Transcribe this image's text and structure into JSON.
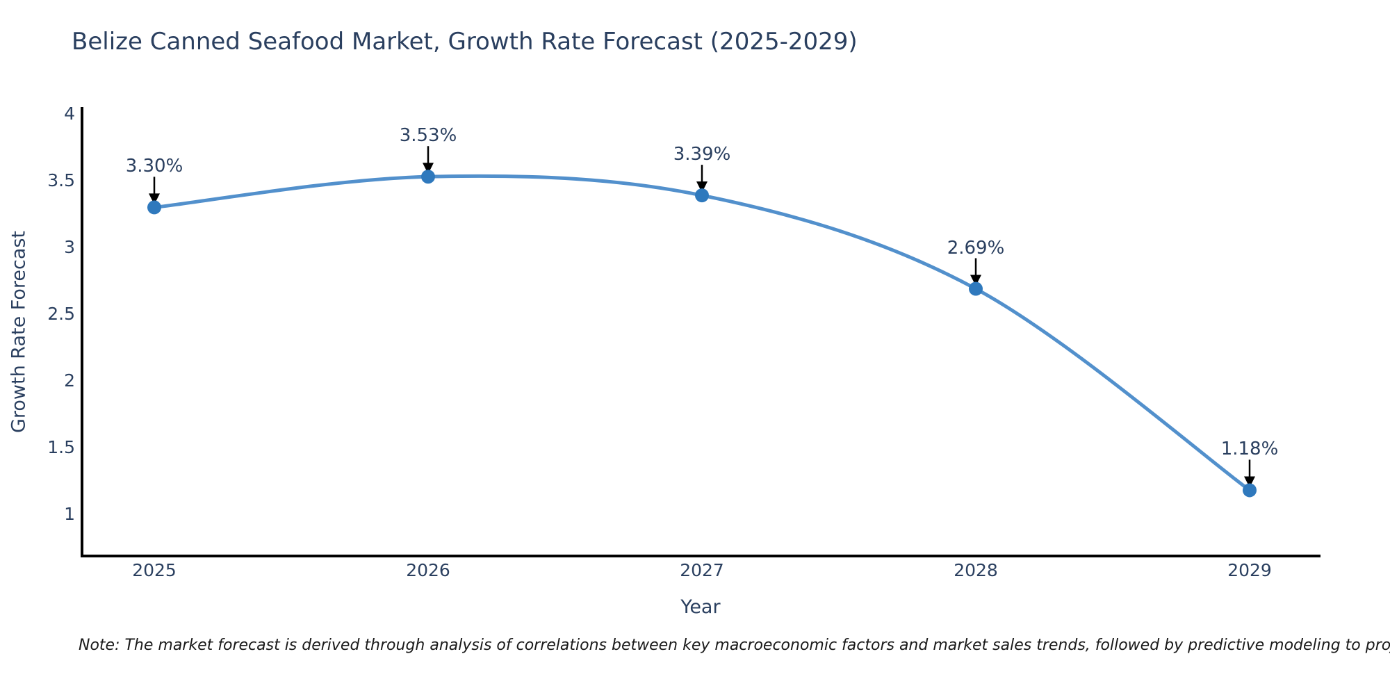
{
  "title": "Belize Canned Seafood Market, Growth Rate Forecast (2025-2029)",
  "chart_data": {
    "type": "line",
    "line_shape": "spline",
    "x": [
      2025,
      2026,
      2027,
      2028,
      2029
    ],
    "series": [
      {
        "name": "Growth Rate Forecast",
        "values": [
          3.3,
          3.53,
          3.39,
          2.69,
          1.18
        ]
      }
    ],
    "point_labels": [
      "3.30%",
      "3.53%",
      "3.39%",
      "2.69%",
      "1.18%"
    ],
    "xlabel": "Year",
    "ylabel": "Growth Rate Forecast",
    "yticks": [
      4,
      3.5,
      3,
      2.5,
      2,
      1.5,
      1
    ],
    "ylim": [
      0.69,
      4.05
    ],
    "xlim": [
      2024.73,
      2029.26
    ],
    "grid": false,
    "legend": "none",
    "colors": {
      "line": "#5290cc",
      "marker": "#2f79bd",
      "arrow": "#000000",
      "axis": "#000000",
      "text": "#2a3f5f",
      "note": "#1a1a1a",
      "background": "#ffffff"
    }
  },
  "note": "Note: The market forecast is derived through analysis of correlations between key macroeconomic factors and market sales trends, followed by predictive modeling to project future sales"
}
